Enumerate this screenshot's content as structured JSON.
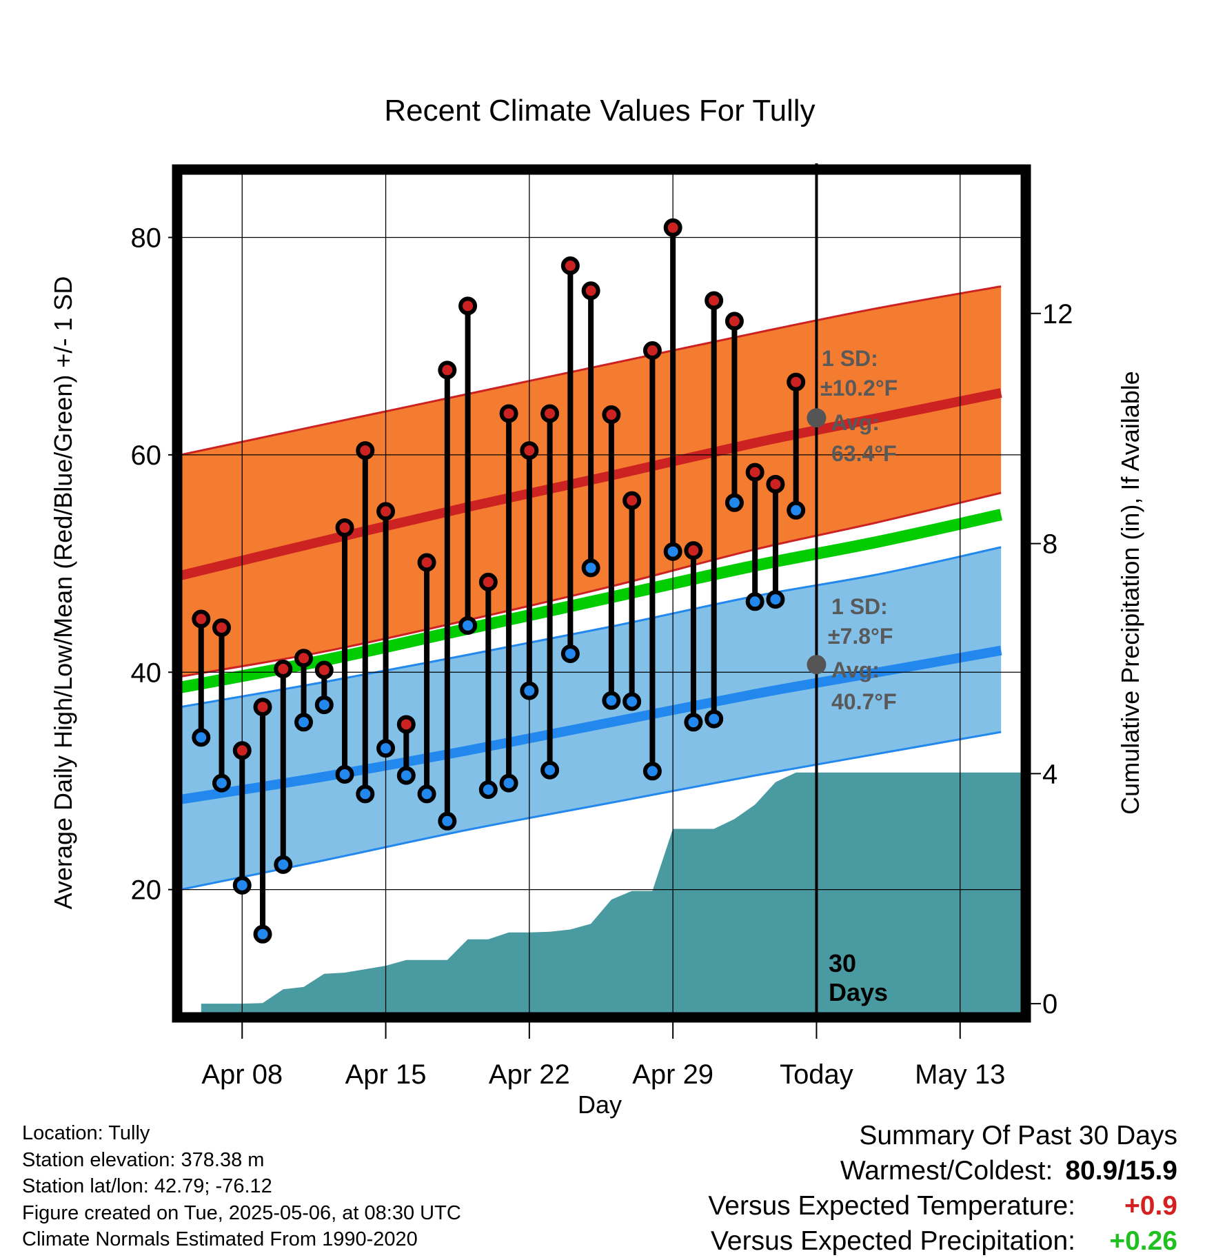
{
  "chart_data": {
    "type": "line",
    "title": "Recent Climate Values For Tully",
    "xlabel": "Day",
    "ylabel": "Average Daily High/Low/Mean (Red/Blue/Green) +/- 1 SD",
    "y2label": "Cumulative Precipitation (in), If Available",
    "ylim": [
      8.5,
      86.5
    ],
    "y2lim": [
      -0.19,
      14.55
    ],
    "yticks": [
      20,
      40,
      60,
      80
    ],
    "y2ticks": [
      0,
      4,
      8,
      12
    ],
    "xlim": [
      "2025-04-05",
      "2025-05-16"
    ],
    "xticks": [
      {
        "date": "2025-04-08",
        "label": "Apr 08"
      },
      {
        "date": "2025-04-15",
        "label": "Apr 15"
      },
      {
        "date": "2025-04-22",
        "label": "Apr 22"
      },
      {
        "date": "2025-04-29",
        "label": "Apr 29"
      },
      {
        "date": "2025-05-06",
        "label": "Today"
      },
      {
        "date": "2025-05-13",
        "label": "May 13"
      }
    ],
    "grid": true,
    "today": "2025-05-06",
    "normals": {
      "x": [
        "2025-04-05",
        "2025-04-12",
        "2025-04-19",
        "2025-04-26",
        "2025-05-03",
        "2025-05-09",
        "2025-05-15"
      ],
      "high_mean": [
        48.9,
        52.1,
        55.2,
        58.1,
        61.1,
        63.4,
        65.7
      ],
      "high_upper": [
        60.0,
        62.8,
        65.6,
        68.4,
        71.2,
        73.5,
        75.5
      ],
      "high_lower": [
        39.6,
        41.9,
        44.8,
        47.9,
        51.3,
        53.8,
        56.5
      ],
      "avg_mean": [
        38.6,
        41.1,
        44.0,
        46.9,
        49.8,
        52.0,
        54.5
      ],
      "low_mean": [
        28.3,
        30.4,
        32.8,
        35.4,
        38.0,
        40.0,
        42.0
      ],
      "low_upper": [
        36.8,
        39.1,
        41.6,
        44.2,
        47.0,
        49.0,
        51.5
      ],
      "low_lower": [
        20.0,
        22.7,
        25.5,
        28.0,
        30.5,
        32.5,
        34.5
      ]
    },
    "series": [
      {
        "name": "High",
        "color": "#cc2222",
        "x": [
          "2025-04-06",
          "2025-04-07",
          "2025-04-08",
          "2025-04-09",
          "2025-04-10",
          "2025-04-11",
          "2025-04-12",
          "2025-04-13",
          "2025-04-14",
          "2025-04-15",
          "2025-04-16",
          "2025-04-17",
          "2025-04-18",
          "2025-04-19",
          "2025-04-20",
          "2025-04-21",
          "2025-04-22",
          "2025-04-23",
          "2025-04-24",
          "2025-04-25",
          "2025-04-26",
          "2025-04-27",
          "2025-04-28",
          "2025-04-29",
          "2025-04-30",
          "2025-05-01",
          "2025-05-02",
          "2025-05-03",
          "2025-05-04",
          "2025-05-05"
        ],
        "values": [
          44.9,
          44.1,
          32.8,
          36.8,
          40.3,
          41.3,
          40.2,
          53.3,
          60.4,
          54.8,
          35.2,
          50.1,
          67.8,
          73.7,
          48.3,
          63.8,
          60.4,
          63.8,
          77.4,
          75.1,
          63.7,
          55.8,
          69.6,
          80.9,
          51.2,
          74.2,
          72.3,
          58.4,
          57.3,
          66.7
        ]
      },
      {
        "name": "Low",
        "color": "#2288ee",
        "x": [
          "2025-04-06",
          "2025-04-07",
          "2025-04-08",
          "2025-04-09",
          "2025-04-10",
          "2025-04-11",
          "2025-04-12",
          "2025-04-13",
          "2025-04-14",
          "2025-04-15",
          "2025-04-16",
          "2025-04-17",
          "2025-04-18",
          "2025-04-19",
          "2025-04-20",
          "2025-04-21",
          "2025-04-22",
          "2025-04-23",
          "2025-04-24",
          "2025-04-25",
          "2025-04-26",
          "2025-04-27",
          "2025-04-28",
          "2025-04-29",
          "2025-04-30",
          "2025-05-01",
          "2025-05-02",
          "2025-05-03",
          "2025-05-04",
          "2025-05-05"
        ],
        "values": [
          34.0,
          29.8,
          20.4,
          15.9,
          22.3,
          35.4,
          37.0,
          30.6,
          28.8,
          33.0,
          30.5,
          28.8,
          26.3,
          44.3,
          29.2,
          29.8,
          38.3,
          31.0,
          41.7,
          49.6,
          37.4,
          37.3,
          30.9,
          51.1,
          35.4,
          35.7,
          55.6,
          46.5,
          46.7,
          54.9
        ]
      }
    ],
    "precipitation": {
      "x": [
        "2025-04-06",
        "2025-04-07",
        "2025-04-08",
        "2025-04-09",
        "2025-04-10",
        "2025-04-11",
        "2025-04-12",
        "2025-04-13",
        "2025-04-14",
        "2025-04-15",
        "2025-04-16",
        "2025-04-17",
        "2025-04-18",
        "2025-04-19",
        "2025-04-20",
        "2025-04-21",
        "2025-04-22",
        "2025-04-23",
        "2025-04-24",
        "2025-04-25",
        "2025-04-26",
        "2025-04-27",
        "2025-04-28",
        "2025-04-29",
        "2025-04-30",
        "2025-05-01",
        "2025-05-02",
        "2025-05-03",
        "2025-05-04",
        "2025-05-05",
        "2025-05-06",
        "2025-05-16"
      ],
      "values": [
        0,
        0,
        0,
        0.01,
        0.25,
        0.29,
        0.52,
        0.54,
        0.6,
        0.66,
        0.76,
        0.76,
        0.76,
        1.12,
        1.12,
        1.24,
        1.24,
        1.25,
        1.29,
        1.39,
        1.81,
        1.96,
        1.96,
        3.04,
        3.04,
        3.04,
        3.21,
        3.46,
        3.85,
        4.02,
        4.02,
        4.02
      ]
    },
    "annotations": {
      "high": {
        "sd_label": "1 SD:",
        "sd_value": "±10.2°F",
        "avg_label": "Avg:",
        "avg_value": "63.4°F",
        "avg_y": 63.4
      },
      "low": {
        "sd_label": "1 SD:",
        "sd_value": "±7.8°F",
        "avg_label": "Avg:",
        "avg_value": "40.7°F",
        "avg_y": 40.7
      },
      "window_label_1": "30",
      "window_label_2": "Days"
    },
    "colors": {
      "high_band": "#f47c30",
      "high_line": "#cc2222",
      "low_band": "#82c0e8",
      "low_line": "#2288ee",
      "avg_line": "#00cc00",
      "precip": "#4a9aa2"
    }
  },
  "info": {
    "location": "Location: Tully",
    "elevation": "Station elevation: 378.38 m",
    "latlon": "Station lat/lon: 42.79; -76.12",
    "created": "Figure created on Tue, 2025-05-06, at 08:30 UTC",
    "normals": "Climate Normals Estimated From 1990-2020"
  },
  "summary": {
    "title": "Summary Of Past 30 Days",
    "warmest_label": "Warmest/Coldest:",
    "warmest_value": "80.9/15.9",
    "temp_label": "Versus Expected Temperature:",
    "temp_value": "+0.9",
    "temp_color": "#d42020",
    "precip_label": "Versus Expected Precipitation:",
    "precip_value": "+0.26",
    "precip_color": "#20c020"
  }
}
